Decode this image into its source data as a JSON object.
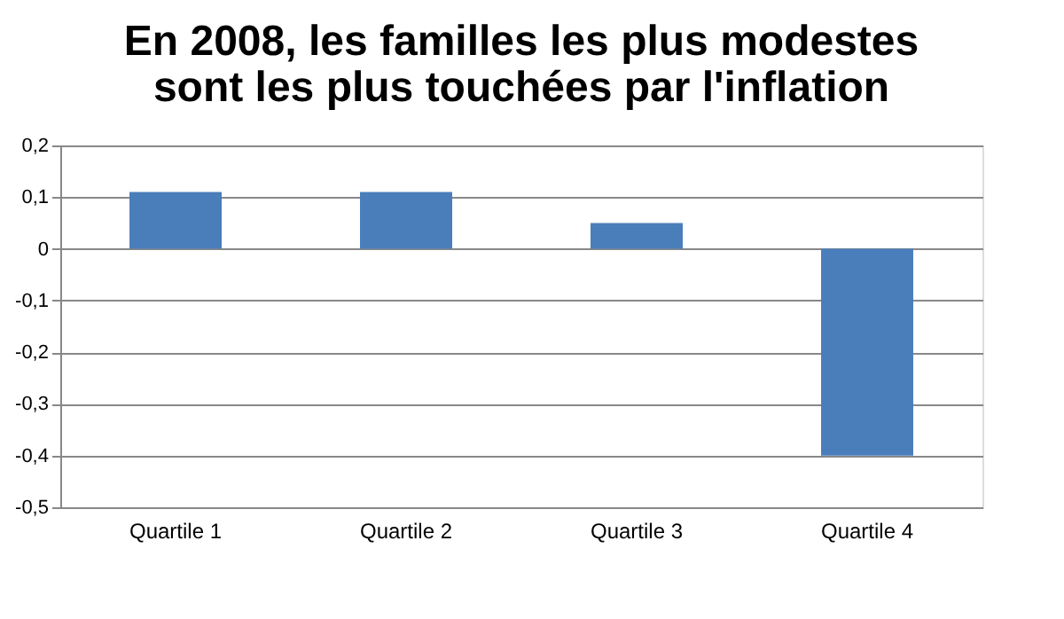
{
  "chart_data": {
    "type": "bar",
    "title": "En 2008, les familles les plus modestes\nsont les plus touchées par l'inflation",
    "categories": [
      "Quartile 1",
      "Quartile 2",
      "Quartile 3",
      "Quartile 4"
    ],
    "values": [
      0.11,
      0.11,
      0.05,
      -0.4
    ],
    "color": "#4a7ebb",
    "ylim": [
      -0.5,
      0.2
    ],
    "yticks": [
      {
        "value": -0.5,
        "label": "-0,5"
      },
      {
        "value": -0.4,
        "label": "-0,4"
      },
      {
        "value": -0.3,
        "label": "-0,3"
      },
      {
        "value": -0.2,
        "label": "-0,2"
      },
      {
        "value": -0.1,
        "label": "-0,1"
      },
      0,
      {
        "value": 0.1,
        "label": "0,1"
      },
      {
        "value": 0.2,
        "label": "0,2"
      }
    ],
    "grid": "y"
  }
}
